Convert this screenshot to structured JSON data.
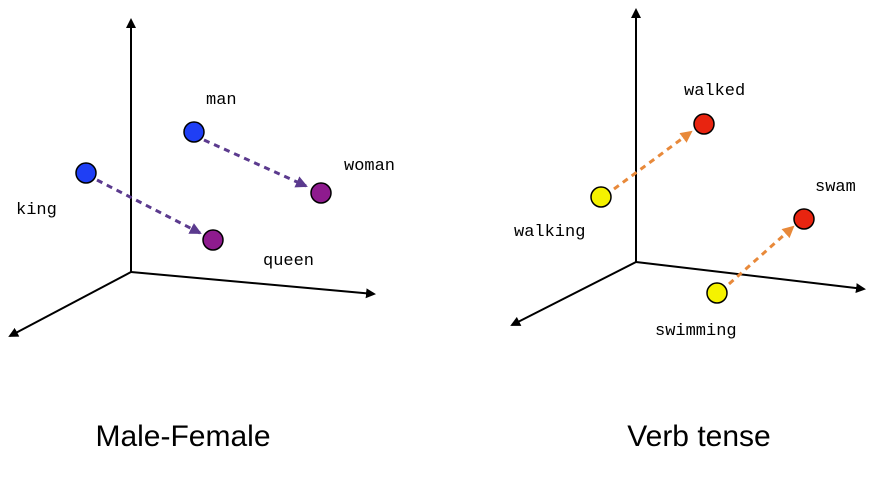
{
  "panels": [
    {
      "caption": "Male-Female",
      "arrow_color": "#5b3a8e",
      "points": [
        {
          "label": "man",
          "color": "#1f3ff5"
        },
        {
          "label": "woman",
          "color": "#8e1b8e"
        },
        {
          "label": "king",
          "color": "#1f3ff5"
        },
        {
          "label": "queen",
          "color": "#8e1b8e"
        }
      ]
    },
    {
      "caption": "Verb tense",
      "arrow_color": "#e8893a",
      "points": [
        {
          "label": "walking",
          "color": "#f5f200"
        },
        {
          "label": "walked",
          "color": "#e82410"
        },
        {
          "label": "swimming",
          "color": "#f5f200"
        },
        {
          "label": "swam",
          "color": "#e82410"
        }
      ]
    }
  ]
}
